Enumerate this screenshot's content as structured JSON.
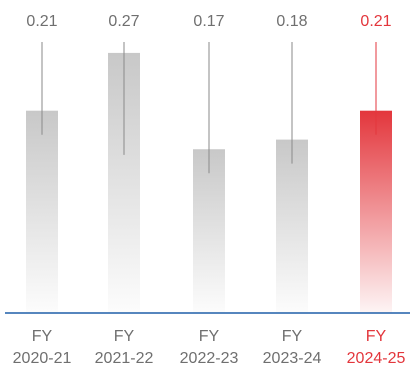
{
  "chart_data": {
    "type": "bar",
    "categories": [
      [
        "FY",
        "2020-21"
      ],
      [
        "FY",
        "2021-22"
      ],
      [
        "FY",
        "2022-23"
      ],
      [
        "FY",
        "2023-24"
      ],
      [
        "FY",
        "2024-25"
      ]
    ],
    "values": [
      0.21,
      0.27,
      0.17,
      0.18,
      0.21
    ],
    "value_labels": [
      "0.21",
      "0.27",
      "0.17",
      "0.18",
      "0.21"
    ],
    "highlight_index": 4,
    "colors": {
      "bar": "#c8c8c8",
      "highlight": "#e3363c",
      "axis": "#1f5fa8",
      "text": "#6f6f6f",
      "whisker": "#8a8a8a"
    },
    "ylim": [
      0,
      0.3
    ],
    "grid": false,
    "legend": "none",
    "title": "",
    "xlabel": "",
    "ylabel": ""
  }
}
